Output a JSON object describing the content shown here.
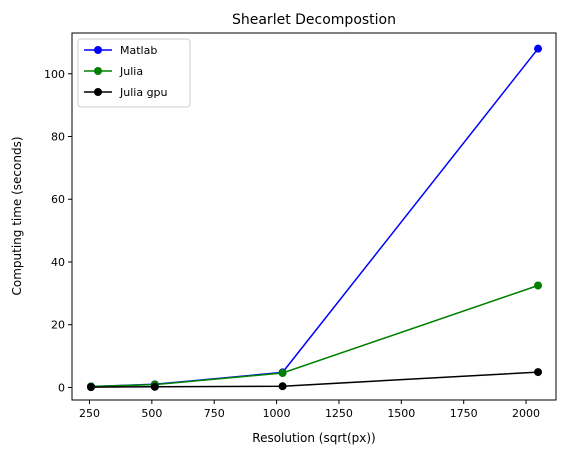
{
  "chart_data": {
    "type": "line",
    "title": "Shearlet Decompostion",
    "xlabel": "Resolution (sqrt(px))",
    "ylabel": "Computing time (seconds)",
    "xlim": [
      180,
      2120
    ],
    "ylim": [
      -4,
      113
    ],
    "xticks": [
      250,
      500,
      750,
      1000,
      1250,
      1500,
      1750,
      2000
    ],
    "yticks": [
      0,
      20,
      40,
      60,
      80,
      100
    ],
    "grid": false,
    "legend_position": "top-left",
    "series": [
      {
        "name": "Matlab",
        "color": "#0000ff",
        "x": [
          256,
          512,
          1024,
          2048
        ],
        "y": [
          0.3,
          1.0,
          4.8,
          108.0
        ]
      },
      {
        "name": "Julia",
        "color": "#008000",
        "x": [
          256,
          512,
          1024,
          2048
        ],
        "y": [
          0.3,
          0.9,
          4.6,
          32.5
        ]
      },
      {
        "name": "Julia gpu",
        "color": "#000000",
        "x": [
          256,
          512,
          1024,
          2048
        ],
        "y": [
          0.1,
          0.2,
          0.4,
          4.9
        ]
      }
    ]
  }
}
